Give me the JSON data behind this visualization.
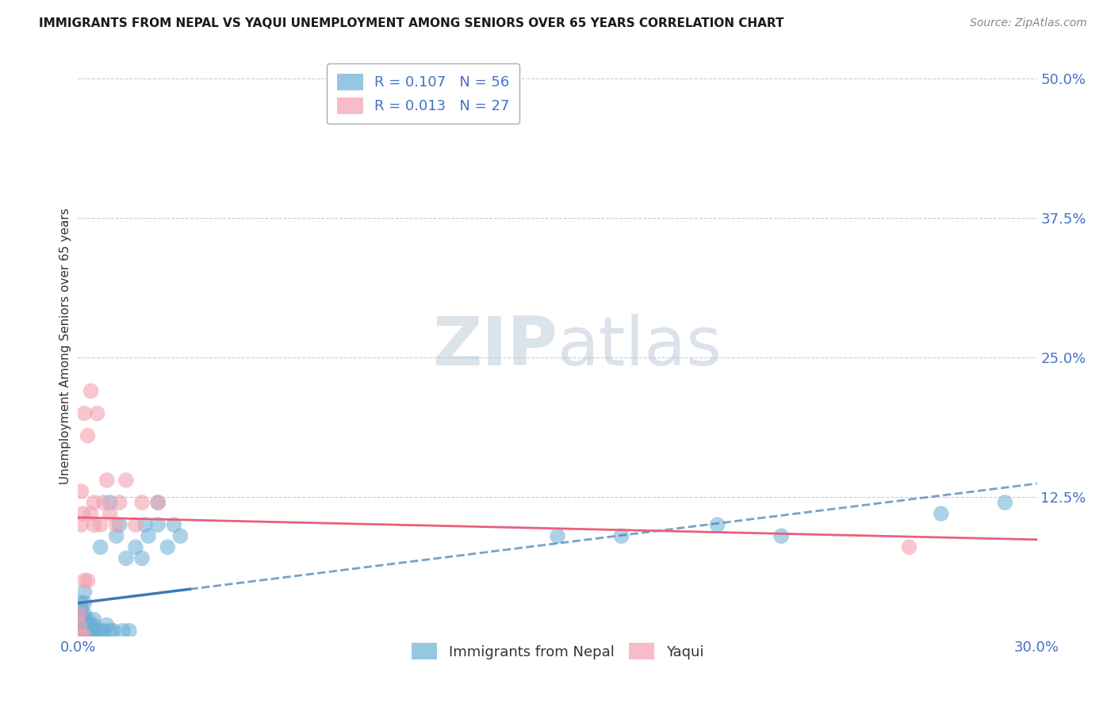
{
  "title": "IMMIGRANTS FROM NEPAL VS YAQUI UNEMPLOYMENT AMONG SENIORS OVER 65 YEARS CORRELATION CHART",
  "source": "Source: ZipAtlas.com",
  "ylabel": "Unemployment Among Seniors over 65 years",
  "xlim": [
    0.0,
    0.3
  ],
  "ylim": [
    0.0,
    0.52
  ],
  "yticks": [
    0.0,
    0.125,
    0.25,
    0.375,
    0.5
  ],
  "ytick_labels": [
    "",
    "12.5%",
    "25.0%",
    "37.5%",
    "50.0%"
  ],
  "xticks": [
    0.0,
    0.05,
    0.1,
    0.15,
    0.2,
    0.25,
    0.3
  ],
  "xtick_labels": [
    "0.0%",
    "",
    "",
    "",
    "",
    "",
    "30.0%"
  ],
  "nepal_R": 0.107,
  "nepal_N": 56,
  "yaqui_R": 0.013,
  "yaqui_N": 27,
  "nepal_color": "#6baed6",
  "yaqui_color": "#f4a0b0",
  "nepal_line_color": "#3d7ab5",
  "yaqui_line_color": "#e8607a",
  "watermark_color": "#d0dce8",
  "nepal_x": [
    0.0003,
    0.0005,
    0.0007,
    0.001,
    0.001,
    0.001,
    0.001,
    0.001,
    0.001,
    0.001,
    0.0015,
    0.002,
    0.002,
    0.002,
    0.002,
    0.002,
    0.002,
    0.002,
    0.0025,
    0.003,
    0.003,
    0.003,
    0.003,
    0.004,
    0.004,
    0.005,
    0.005,
    0.005,
    0.006,
    0.007,
    0.007,
    0.008,
    0.009,
    0.01,
    0.01,
    0.011,
    0.012,
    0.013,
    0.014,
    0.015,
    0.016,
    0.018,
    0.02,
    0.021,
    0.022,
    0.025,
    0.025,
    0.028,
    0.03,
    0.032,
    0.15,
    0.17,
    0.2,
    0.22,
    0.27,
    0.29
  ],
  "nepal_y": [
    0.02,
    0.01,
    0.005,
    0.0,
    0.005,
    0.01,
    0.015,
    0.02,
    0.025,
    0.03,
    0.01,
    0.0,
    0.005,
    0.01,
    0.015,
    0.02,
    0.03,
    0.04,
    0.005,
    0.0,
    0.005,
    0.01,
    0.015,
    0.005,
    0.01,
    0.005,
    0.01,
    0.015,
    0.005,
    0.005,
    0.08,
    0.005,
    0.01,
    0.005,
    0.12,
    0.005,
    0.09,
    0.1,
    0.005,
    0.07,
    0.005,
    0.08,
    0.07,
    0.1,
    0.09,
    0.1,
    0.12,
    0.08,
    0.1,
    0.09,
    0.09,
    0.09,
    0.1,
    0.09,
    0.11,
    0.12
  ],
  "yaqui_x": [
    0.0003,
    0.0005,
    0.001,
    0.001,
    0.001,
    0.0015,
    0.002,
    0.002,
    0.002,
    0.003,
    0.003,
    0.004,
    0.004,
    0.005,
    0.005,
    0.006,
    0.007,
    0.008,
    0.009,
    0.01,
    0.012,
    0.013,
    0.015,
    0.018,
    0.02,
    0.025,
    0.26
  ],
  "yaqui_y": [
    0.02,
    0.01,
    0.0,
    0.1,
    0.13,
    0.11,
    0.0,
    0.05,
    0.2,
    0.05,
    0.18,
    0.11,
    0.22,
    0.1,
    0.12,
    0.2,
    0.1,
    0.12,
    0.14,
    0.11,
    0.1,
    0.12,
    0.14,
    0.1,
    0.12,
    0.12,
    0.08
  ],
  "grid_color": "#cccccc",
  "background_color": "#ffffff"
}
